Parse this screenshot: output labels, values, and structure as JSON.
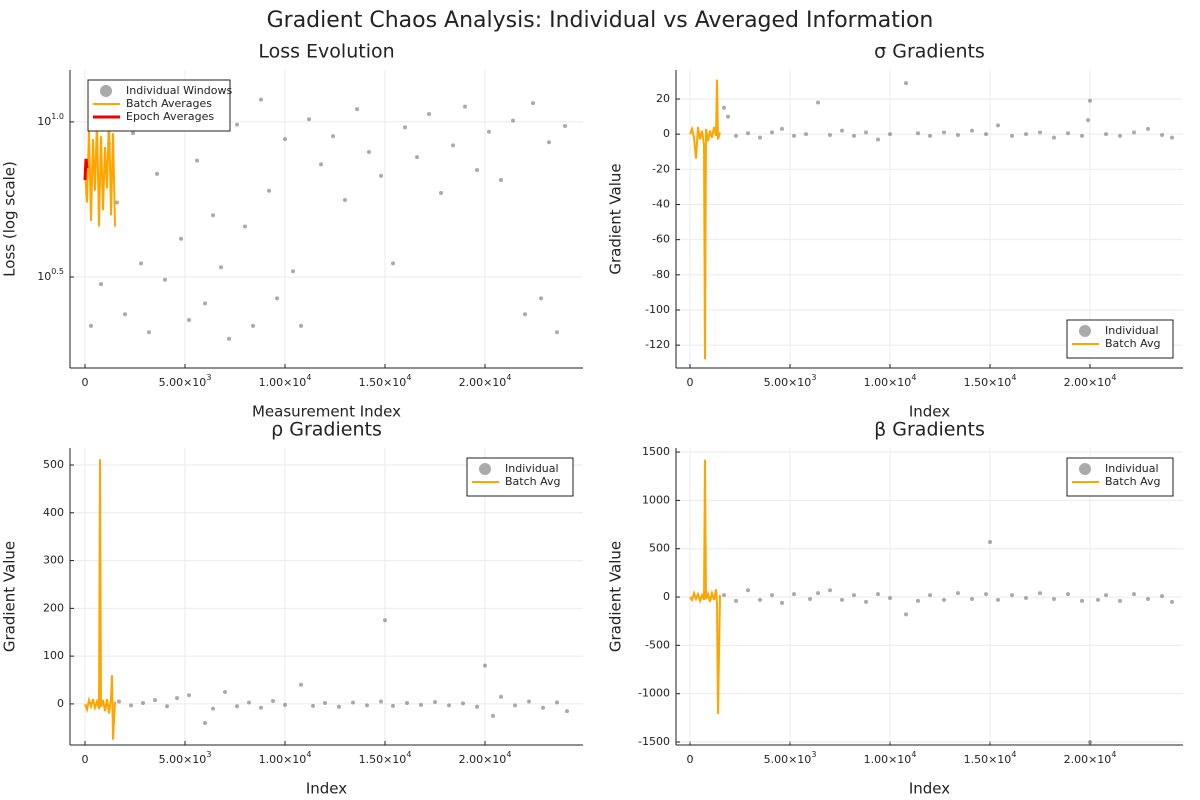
{
  "title": "Gradient Chaos Analysis: Individual vs Averaged Information",
  "chart_data": [
    {
      "type": "scatter",
      "title": "Loss Evolution",
      "x_label": "Measurement Index",
      "y_label": "Loss (log scale)",
      "log_y": true,
      "grid": true,
      "legend": "top-left",
      "xlim": [
        -750,
        24900
      ],
      "ylim": [
        1.61,
        14.7
      ],
      "xticks": [
        0,
        {
          "value": 5000,
          "label": "5.00×10",
          "exponent": "3"
        },
        {
          "value": 10000,
          "label": "1.00×10",
          "exponent": "4"
        },
        {
          "value": 15000,
          "label": "1.50×10",
          "exponent": "4"
        },
        {
          "value": 20000,
          "label": "2.00×10",
          "exponent": "4"
        }
      ],
      "yticks": [
        {
          "value": 3.1623,
          "label": "10",
          "exponent": "0.5"
        },
        {
          "value": 10,
          "label": "10",
          "exponent": "1.0"
        }
      ],
      "series": [
        {
          "name": "Individual Windows",
          "type": "scatter",
          "color": "#555555",
          "x": [
            300,
            800,
            1200,
            1600,
            2000,
            2400,
            2800,
            3200,
            3600,
            4000,
            4400,
            4800,
            5200,
            5600,
            6000,
            6400,
            6800,
            7200,
            7600,
            8000,
            8400,
            8800,
            9200,
            9600,
            10000,
            10400,
            10800,
            11200,
            11800,
            12400,
            13000,
            13600,
            14200,
            14800,
            15400,
            16000,
            16600,
            17200,
            17800,
            18400,
            19000,
            19600,
            20200,
            20800,
            21400,
            22000,
            22400,
            22800,
            23200,
            23600,
            24000
          ],
          "values": [
            2.2,
            3.0,
            8.5,
            5.5,
            2.4,
            9.2,
            3.5,
            2.1,
            6.8,
            3.1,
            10.5,
            4.2,
            2.3,
            7.5,
            2.6,
            5.0,
            3.4,
            2.0,
            9.8,
            4.6,
            2.2,
            11.8,
            6.0,
            2.7,
            8.8,
            3.3,
            2.2,
            10.2,
            7.3,
            9.0,
            5.6,
            11.0,
            8.0,
            6.7,
            3.5,
            9.6,
            7.7,
            10.6,
            5.9,
            8.4,
            11.2,
            7.0,
            9.3,
            6.5,
            10.1,
            2.4,
            11.5,
            2.7,
            8.6,
            2.1,
            9.7
          ]
        },
        {
          "name": "Batch Averages",
          "type": "line",
          "color": "#ffa500",
          "x": [
            0,
            100,
            200,
            300,
            400,
            500,
            600,
            700,
            800,
            900,
            1000,
            1100,
            1200,
            1300,
            1400,
            1500
          ],
          "values": [
            7.0,
            5.5,
            9.5,
            4.8,
            8.8,
            6.0,
            10.2,
            4.6,
            9.0,
            5.2,
            8.3,
            6.1,
            10.5,
            5.0,
            9.2,
            4.6
          ]
        },
        {
          "name": "Epoch Averages",
          "type": "line",
          "color": "#ee0000",
          "x": [
            0,
            50,
            100
          ],
          "values": [
            6.5,
            7.6,
            7.1
          ]
        }
      ]
    },
    {
      "type": "scatter",
      "title": "σ Gradients",
      "x_label": "Index",
      "y_label": "Gradient Value",
      "grid": true,
      "legend": "bottom-right",
      "xlim": [
        -700,
        24650
      ],
      "ylim": [
        -133,
        36.5
      ],
      "xticks": [
        0,
        {
          "value": 5000,
          "label": "5.00×10",
          "exponent": "3"
        },
        {
          "value": 10000,
          "label": "1.00×10",
          "exponent": "4"
        },
        {
          "value": 15000,
          "label": "1.50×10",
          "exponent": "4"
        },
        {
          "value": 20000,
          "label": "2.00×10",
          "exponent": "4"
        }
      ],
      "yticks": [
        -120,
        -100,
        -80,
        -60,
        -40,
        -20,
        0,
        20
      ],
      "series": [
        {
          "name": "Individual",
          "type": "scatter",
          "color": "#555555",
          "x": [
            1700,
            1900,
            2300,
            2900,
            3500,
            4100,
            4600,
            5200,
            5800,
            6400,
            7000,
            7600,
            8200,
            8800,
            9400,
            10000,
            10800,
            11400,
            12000,
            12700,
            13400,
            14100,
            14800,
            15400,
            16100,
            16800,
            17500,
            18200,
            18900,
            19600,
            19900,
            20000,
            20800,
            21500,
            22200,
            22900,
            23600,
            24100
          ],
          "values": [
            15,
            10,
            -1,
            0.5,
            -2,
            1,
            3,
            -1,
            0,
            18,
            -0.5,
            2,
            -1,
            1,
            -3,
            0,
            29,
            0.5,
            -1,
            1,
            -0.5,
            2,
            0,
            5,
            -1,
            0,
            1,
            -2,
            0.5,
            -1,
            8,
            19,
            0,
            -1,
            1,
            3,
            -0.5,
            -2
          ]
        },
        {
          "name": "Batch Avg",
          "type": "line",
          "color": "#ffa500",
          "x": [
            0,
            100,
            200,
            300,
            400,
            500,
            600,
            700,
            750,
            800,
            900,
            1000,
            1100,
            1200,
            1300,
            1350,
            1400,
            1500
          ],
          "values": [
            0,
            3,
            -2,
            -14,
            4,
            -3,
            2,
            -6,
            -128,
            3,
            -4,
            2,
            -2,
            4,
            -1,
            31,
            -3,
            1
          ]
        }
      ]
    },
    {
      "type": "scatter",
      "title": "ρ Gradients",
      "x_label": "Index",
      "y_label": "Gradient Value",
      "grid": true,
      "legend": "top-right",
      "xlim": [
        -750,
        24900
      ],
      "ylim": [
        -86,
        535.6
      ],
      "xticks": [
        0,
        {
          "value": 5000,
          "label": "5.00×10",
          "exponent": "3"
        },
        {
          "value": 10000,
          "label": "1.00×10",
          "exponent": "4"
        },
        {
          "value": 15000,
          "label": "1.50×10",
          "exponent": "4"
        },
        {
          "value": 20000,
          "label": "2.00×10",
          "exponent": "4"
        }
      ],
      "yticks": [
        0,
        100,
        200,
        300,
        400,
        500
      ],
      "series": [
        {
          "name": "Individual",
          "type": "scatter",
          "color": "#555555",
          "x": [
            1700,
            2300,
            2900,
            3500,
            4100,
            4600,
            5200,
            6000,
            6400,
            7000,
            7600,
            8200,
            8800,
            9400,
            10000,
            10800,
            11400,
            12000,
            12700,
            13400,
            14100,
            14800,
            15000,
            15400,
            16100,
            16800,
            17500,
            18200,
            18900,
            19600,
            20000,
            20400,
            20800,
            21500,
            22200,
            22900,
            23600,
            24100
          ],
          "values": [
            5,
            -3,
            2,
            8,
            -5,
            12,
            18,
            -40,
            -10,
            25,
            -5,
            3,
            -8,
            6,
            -2,
            40,
            -4,
            2,
            -6,
            3,
            -3,
            5,
            175,
            -4,
            2,
            -2,
            4,
            -3,
            1,
            -6,
            80,
            -25,
            15,
            -3,
            5,
            -8,
            3,
            -15
          ]
        },
        {
          "name": "Batch Avg",
          "type": "line",
          "color": "#ffa500",
          "x": [
            0,
            100,
            200,
            300,
            400,
            500,
            600,
            700,
            750,
            800,
            900,
            1000,
            1100,
            1200,
            1300,
            1350,
            1400,
            1500
          ],
          "values": [
            0,
            -12,
            8,
            -5,
            10,
            -8,
            5,
            -10,
            512,
            -6,
            8,
            -15,
            10,
            -20,
            12,
            60,
            -75,
            5
          ]
        }
      ]
    },
    {
      "type": "scatter",
      "title": "β Gradients",
      "x_label": "Index",
      "y_label": "Gradient Value",
      "grid": true,
      "legend": "top-right",
      "xlim": [
        -700,
        24650
      ],
      "ylim": [
        -1531,
        1542
      ],
      "xticks": [
        0,
        {
          "value": 5000,
          "label": "5.00×10",
          "exponent": "3"
        },
        {
          "value": 10000,
          "label": "1.00×10",
          "exponent": "4"
        },
        {
          "value": 15000,
          "label": "1.50×10",
          "exponent": "4"
        },
        {
          "value": 20000,
          "label": "2.00×10",
          "exponent": "4"
        }
      ],
      "yticks": [
        -1500,
        -1000,
        -500,
        0,
        500,
        1000,
        1500
      ],
      "series": [
        {
          "name": "Individual",
          "type": "scatter",
          "color": "#555555",
          "x": [
            1700,
            2300,
            2900,
            3500,
            4100,
            4600,
            5200,
            6000,
            6400,
            7000,
            7600,
            8200,
            8800,
            9400,
            10000,
            10800,
            11400,
            12000,
            12700,
            13400,
            14100,
            14800,
            15000,
            15400,
            16100,
            16800,
            17500,
            18200,
            18900,
            19600,
            20000,
            20400,
            20800,
            21500,
            22200,
            22900,
            23600,
            24100
          ],
          "values": [
            20,
            -40,
            70,
            -30,
            20,
            -60,
            30,
            -20,
            40,
            70,
            -30,
            20,
            -50,
            30,
            -10,
            -180,
            -40,
            20,
            -30,
            40,
            -20,
            30,
            570,
            -30,
            20,
            -10,
            40,
            -20,
            30,
            -40,
            -1500,
            -30,
            20,
            -40,
            30,
            -20,
            10,
            -50
          ]
        },
        {
          "name": "Batch Avg",
          "type": "line",
          "color": "#ffa500",
          "x": [
            0,
            100,
            200,
            300,
            400,
            500,
            600,
            700,
            750,
            800,
            900,
            1000,
            1100,
            1200,
            1300,
            1350,
            1400,
            1500
          ],
          "values": [
            0,
            -30,
            40,
            -20,
            30,
            -40,
            20,
            -30,
            1420,
            -20,
            30,
            -50,
            40,
            -30,
            80,
            -60,
            -1210,
            20
          ]
        }
      ]
    }
  ]
}
